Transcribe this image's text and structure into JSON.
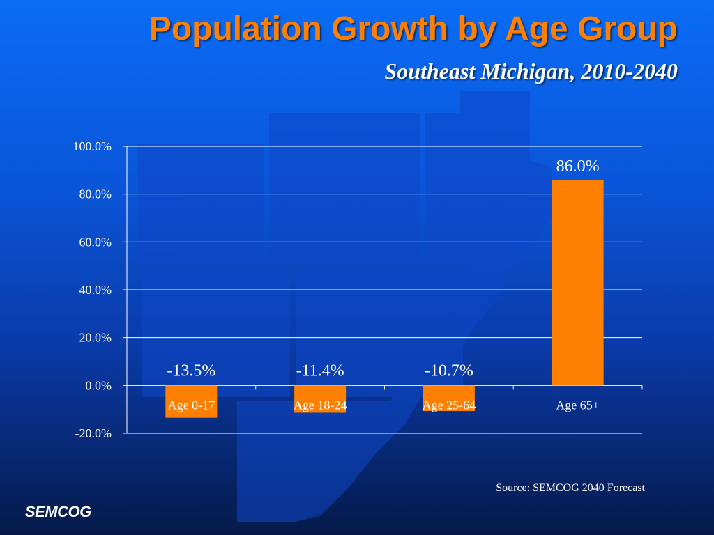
{
  "header": {
    "title": "Population Growth by Age Group",
    "subtitle": "Southeast Michigan, 2010-2040"
  },
  "footer": {
    "source": "Source: SEMCOG 2040 Forecast",
    "logo": "SEMCOG"
  },
  "colors": {
    "bar": "#ff7f00",
    "title": "#ff7f00",
    "text": "#ffffff",
    "grid": "#ffffff"
  },
  "chart_data": {
    "type": "bar",
    "categories": [
      "Age 0-17",
      "Age 18-24",
      "Age 25-64",
      "Age 65+"
    ],
    "values": [
      -13.5,
      -11.4,
      -10.7,
      86.0
    ],
    "data_labels": [
      "-13.5%",
      "-11.4%",
      "-10.7%",
      "86.0%"
    ],
    "yticks": [
      -20,
      0,
      20,
      40,
      60,
      80,
      100
    ],
    "ytick_labels": [
      "-20.0%",
      "0.0%",
      "20.0%",
      "40.0%",
      "60.0%",
      "80.0%",
      "100.0%"
    ],
    "ylim": [
      -20,
      100
    ],
    "grid": true,
    "legend": false
  }
}
